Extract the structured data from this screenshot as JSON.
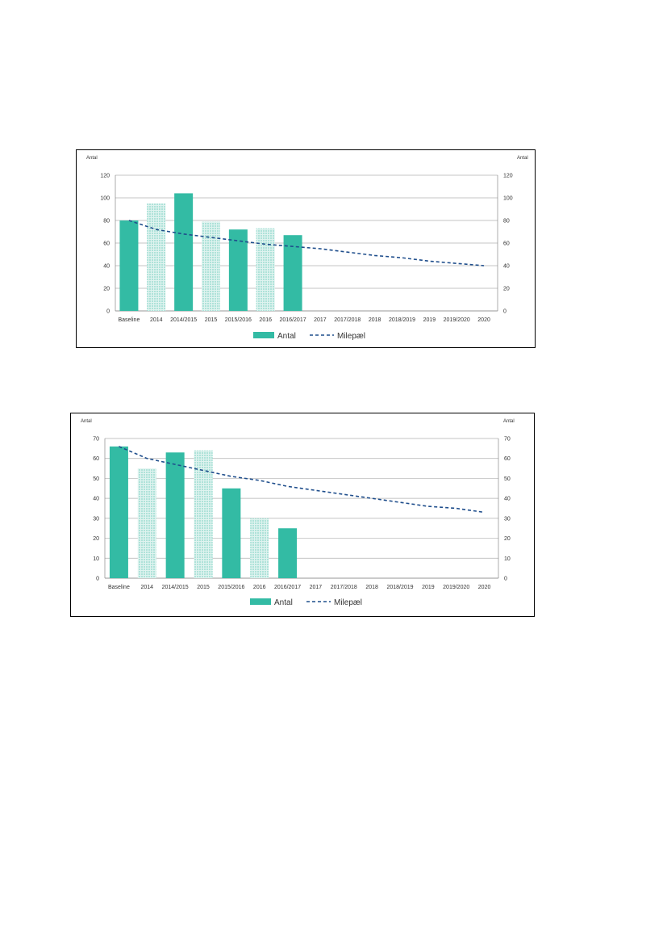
{
  "colors": {
    "bar_solid": "#33bba4",
    "bar_hatched_fill": "#dff3ef",
    "bar_hatched_pattern": "#33bba4",
    "milestone_line": "#1f4e8c",
    "gridline": "#b0b0b0"
  },
  "chart_data": [
    {
      "type": "bar",
      "ylabel_left": "Antal",
      "ylabel_right": "Antal",
      "ylim": [
        0,
        120
      ],
      "yticks": [
        0,
        20,
        40,
        60,
        80,
        100,
        120
      ],
      "grid": true,
      "legend_placement": "bottom-center",
      "categories": [
        "Baseline",
        "2014",
        "2014/2015",
        "2015",
        "2015/2016",
        "2016",
        "2016/2017",
        "2017",
        "2017/2018",
        "2018",
        "2018/2019",
        "2019",
        "2019/2020",
        "2020"
      ],
      "series": [
        {
          "name": "Antal",
          "kind": "bar",
          "values": [
            80,
            95,
            104,
            79,
            72,
            73,
            67,
            null,
            null,
            null,
            null,
            null,
            null,
            null
          ],
          "hatched": [
            false,
            true,
            false,
            true,
            false,
            true,
            false,
            false,
            false,
            false,
            false,
            false,
            false,
            false
          ]
        },
        {
          "name": "Milepæl",
          "kind": "line-dashed",
          "values": [
            80,
            72,
            68,
            65,
            62,
            59,
            57,
            55,
            52,
            49,
            47,
            44,
            42,
            40
          ]
        }
      ]
    },
    {
      "type": "bar",
      "ylabel_left": "Antal",
      "ylabel_right": "Antal",
      "ylim": [
        0,
        70
      ],
      "yticks": [
        0,
        10,
        20,
        30,
        40,
        50,
        60,
        70
      ],
      "grid": true,
      "legend_placement": "bottom-center",
      "categories": [
        "Baseline",
        "2014",
        "2014/2015",
        "2015",
        "2015/2016",
        "2016",
        "2016/2017",
        "2017",
        "2017/2018",
        "2018",
        "2018/2019",
        "2019",
        "2019/2020",
        "2020"
      ],
      "series": [
        {
          "name": "Antal",
          "kind": "bar",
          "values": [
            66,
            55,
            63,
            64,
            45,
            30,
            25,
            null,
            null,
            null,
            null,
            null,
            null,
            null
          ],
          "hatched": [
            false,
            true,
            false,
            true,
            false,
            true,
            false,
            false,
            false,
            false,
            false,
            false,
            false,
            false
          ]
        },
        {
          "name": "Milepæl",
          "kind": "line-dashed",
          "values": [
            66,
            60,
            57,
            54,
            51,
            49,
            46,
            44,
            42,
            40,
            38,
            36,
            35,
            33
          ]
        }
      ]
    }
  ]
}
